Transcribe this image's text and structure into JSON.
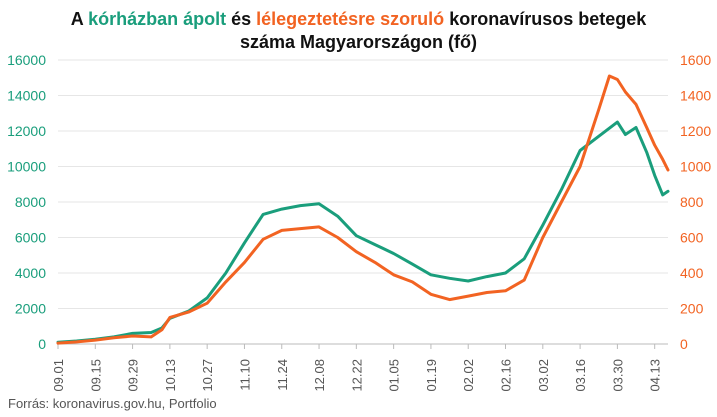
{
  "title": {
    "part1": "A ",
    "hospitalized": "kórházban ápolt",
    "part2": " és ",
    "ventilated": "lélegeztetésre szoruló",
    "part3": " koronavírusos betegek",
    "line2": "száma Magyarországon  (fő)"
  },
  "source": "Forrás: koronavirus.gov.hu, Portfolio",
  "colors": {
    "hospitalized": "#1a9e7c",
    "ventilated": "#f26322"
  },
  "chart_data": {
    "type": "line",
    "title": "A kórházban ápolt és lélegeztetésre szoruló koronavírusos betegek száma Magyarországon  (fő)",
    "x_start": "2020-09-01",
    "x_end": "2021-04-18",
    "x_ticks": [
      "09.01",
      "09.15",
      "09.29",
      "10.13",
      "10.27",
      "11.10",
      "11.24",
      "12.08",
      "12.22",
      "01.05",
      "01.19",
      "02.02",
      "02.16",
      "03.02",
      "03.16",
      "03.30",
      "04.13"
    ],
    "y_left": {
      "ticks": [
        "0",
        "2000",
        "4000",
        "6000",
        "8000",
        "10000",
        "12000",
        "14000",
        "16000"
      ],
      "range": [
        0,
        16000
      ],
      "color": "#1a9e7c"
    },
    "y_right": {
      "ticks": [
        "0",
        "200",
        "400",
        "600",
        "800",
        "1000",
        "1200",
        "1400",
        "1600"
      ],
      "range": [
        0,
        1600
      ],
      "color": "#f26322"
    },
    "grid": "horizontal",
    "series": [
      {
        "name": "kórházban ápolt",
        "axis": "left",
        "color": "#1a9e7c",
        "points": [
          [
            "2020-09-01",
            100
          ],
          [
            "2020-09-08",
            170
          ],
          [
            "2020-09-15",
            270
          ],
          [
            "2020-09-22",
            400
          ],
          [
            "2020-09-29",
            600
          ],
          [
            "2020-10-06",
            650
          ],
          [
            "2020-10-10",
            900
          ],
          [
            "2020-10-13",
            1450
          ],
          [
            "2020-10-20",
            1850
          ],
          [
            "2020-10-27",
            2600
          ],
          [
            "2020-11-03",
            4000
          ],
          [
            "2020-11-10",
            5700
          ],
          [
            "2020-11-17",
            7300
          ],
          [
            "2020-11-24",
            7600
          ],
          [
            "2020-12-01",
            7800
          ],
          [
            "2020-12-08",
            7900
          ],
          [
            "2020-12-15",
            7200
          ],
          [
            "2020-12-22",
            6100
          ],
          [
            "2020-12-29",
            5600
          ],
          [
            "2021-01-05",
            5100
          ],
          [
            "2021-01-12",
            4500
          ],
          [
            "2021-01-19",
            3900
          ],
          [
            "2021-01-26",
            3700
          ],
          [
            "2021-02-02",
            3550
          ],
          [
            "2021-02-09",
            3800
          ],
          [
            "2021-02-16",
            4000
          ],
          [
            "2021-02-23",
            4800
          ],
          [
            "2021-03-02",
            6700
          ],
          [
            "2021-03-09",
            8700
          ],
          [
            "2021-03-16",
            10900
          ],
          [
            "2021-03-23",
            11700
          ],
          [
            "2021-03-30",
            12500
          ],
          [
            "2021-04-02",
            11800
          ],
          [
            "2021-04-06",
            12200
          ],
          [
            "2021-04-10",
            10800
          ],
          [
            "2021-04-13",
            9500
          ],
          [
            "2021-04-16",
            8400
          ],
          [
            "2021-04-18",
            8600
          ]
        ]
      },
      {
        "name": "lélegeztetésre szoruló",
        "axis": "right",
        "color": "#f26322",
        "points": [
          [
            "2020-09-01",
            5
          ],
          [
            "2020-09-08",
            12
          ],
          [
            "2020-09-15",
            22
          ],
          [
            "2020-09-22",
            35
          ],
          [
            "2020-09-29",
            45
          ],
          [
            "2020-10-06",
            40
          ],
          [
            "2020-10-10",
            80
          ],
          [
            "2020-10-13",
            150
          ],
          [
            "2020-10-20",
            180
          ],
          [
            "2020-10-27",
            230
          ],
          [
            "2020-11-03",
            350
          ],
          [
            "2020-11-10",
            460
          ],
          [
            "2020-11-17",
            590
          ],
          [
            "2020-11-24",
            640
          ],
          [
            "2020-12-01",
            650
          ],
          [
            "2020-12-08",
            660
          ],
          [
            "2020-12-15",
            600
          ],
          [
            "2020-12-22",
            520
          ],
          [
            "2020-12-29",
            460
          ],
          [
            "2021-01-05",
            390
          ],
          [
            "2021-01-12",
            350
          ],
          [
            "2021-01-19",
            280
          ],
          [
            "2021-01-26",
            250
          ],
          [
            "2021-02-02",
            270
          ],
          [
            "2021-02-09",
            290
          ],
          [
            "2021-02-16",
            300
          ],
          [
            "2021-02-23",
            360
          ],
          [
            "2021-03-02",
            600
          ],
          [
            "2021-03-09",
            800
          ],
          [
            "2021-03-16",
            1000
          ],
          [
            "2021-03-23",
            1320
          ],
          [
            "2021-03-27",
            1510
          ],
          [
            "2021-03-30",
            1490
          ],
          [
            "2021-04-02",
            1420
          ],
          [
            "2021-04-06",
            1350
          ],
          [
            "2021-04-10",
            1220
          ],
          [
            "2021-04-13",
            1120
          ],
          [
            "2021-04-16",
            1040
          ],
          [
            "2021-04-18",
            980
          ]
        ]
      }
    ]
  }
}
